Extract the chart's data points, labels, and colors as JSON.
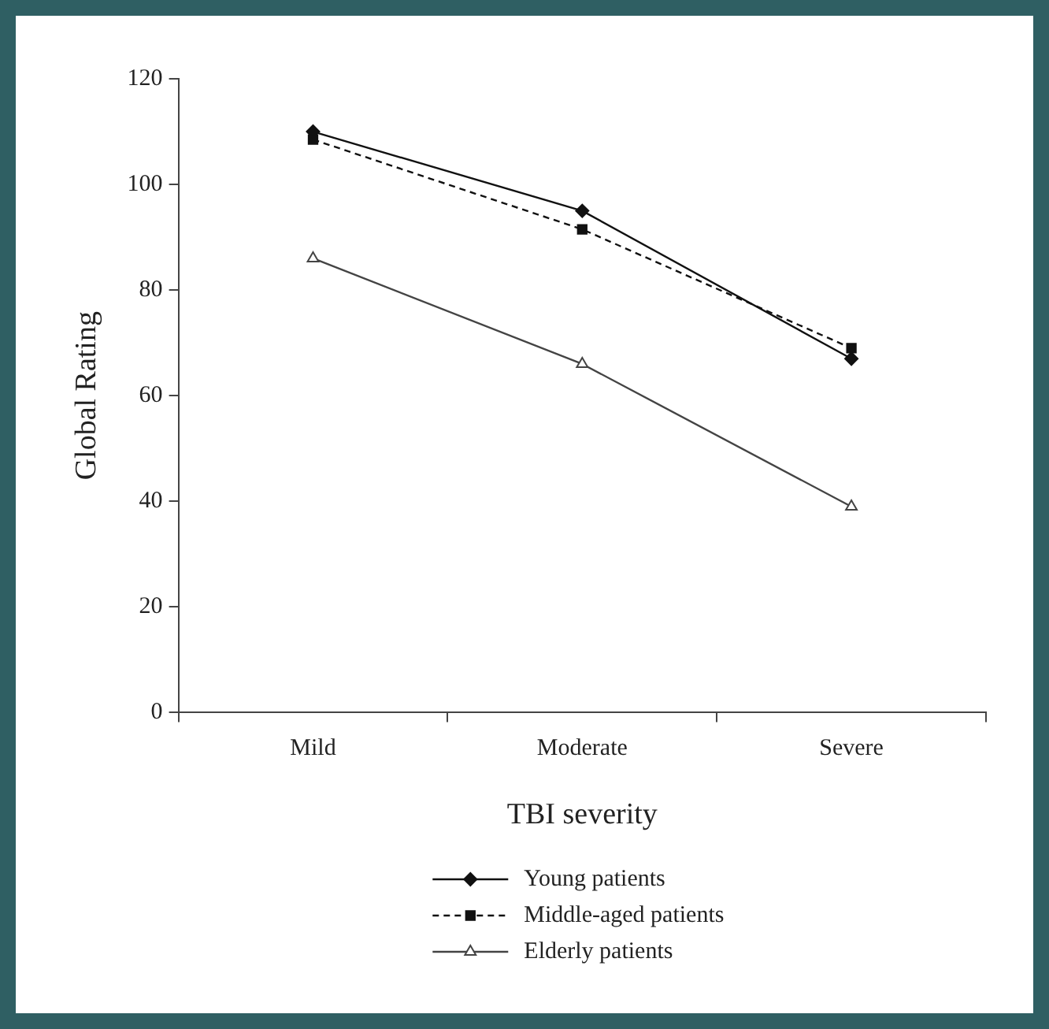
{
  "chart_data": {
    "type": "line",
    "xlabel": "TBI severity",
    "ylabel": "Global Rating",
    "categories": [
      "Mild",
      "Moderate",
      "Severe"
    ],
    "series": [
      {
        "name": "Young patients",
        "color": "#111111",
        "marker": "diamond",
        "line_style": "solid",
        "values": [
          110,
          95,
          67
        ]
      },
      {
        "name": "Middle-aged patients",
        "color": "#111111",
        "marker": "square",
        "line_style": "dashed",
        "values": [
          108.5,
          91.5,
          69
        ]
      },
      {
        "name": "Elderly patients",
        "color": "#444444",
        "marker": "triangle",
        "line_style": "solid",
        "values": [
          86,
          66,
          39
        ]
      }
    ],
    "ylim": [
      0,
      120
    ],
    "yticks": [
      0,
      20,
      40,
      60,
      80,
      100,
      120
    ],
    "grid": false,
    "legend": "bottom"
  }
}
